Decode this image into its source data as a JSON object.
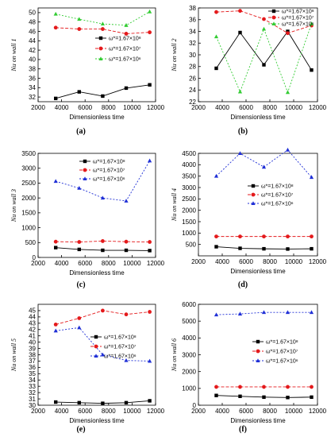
{
  "chart_data": [
    {
      "type": "line",
      "panel": "(a)",
      "title": "",
      "xlabel": "Dimensionless time",
      "ylabel": "Nu on wall 1",
      "x": [
        3500,
        5500,
        7500,
        9500,
        11500
      ],
      "xlim": [
        2000,
        12000
      ],
      "xticks": [
        2000,
        4000,
        6000,
        8000,
        10000,
        12000
      ],
      "ylim": [
        31,
        51
      ],
      "yticks": [
        32,
        34,
        36,
        38,
        40,
        42,
        44,
        46,
        48,
        50
      ],
      "legend_position": "right",
      "series": [
        {
          "name": "ω*=1.67×10^8",
          "values": [
            31.7,
            33.1,
            32.2,
            33.9,
            34.6
          ]
        },
        {
          "name": "ω*=1.67×10^7",
          "values": [
            46.8,
            46.5,
            46.5,
            45.5,
            45.8
          ]
        },
        {
          "name": "ω*=1.67×10^6",
          "values": [
            49.7,
            48.6,
            47.6,
            47.3,
            50.2
          ]
        }
      ]
    },
    {
      "type": "line",
      "panel": "(b)",
      "title": "",
      "xlabel": "Dimensionless time",
      "ylabel": "Nu on wall 2",
      "x": [
        3500,
        5500,
        7500,
        9500,
        11500
      ],
      "xlim": [
        2000,
        12000
      ],
      "xticks": [
        2000,
        4000,
        6000,
        8000,
        10000,
        12000
      ],
      "ylim": [
        22,
        38
      ],
      "yticks": [
        22,
        24,
        26,
        28,
        30,
        32,
        34,
        36,
        38
      ],
      "legend_position": "top-right",
      "series": [
        {
          "name": "ω*=1.67×10^8",
          "values": [
            27.7,
            33.8,
            28.3,
            34.0,
            27.4
          ]
        },
        {
          "name": "ω*=1.67×10^7",
          "values": [
            37.3,
            37.5,
            36.1,
            33.7,
            35.0
          ]
        },
        {
          "name": "ω*=1.67×10^6",
          "values": [
            33.1,
            23.7,
            34.4,
            23.6,
            35.3
          ]
        }
      ]
    },
    {
      "type": "line",
      "panel": "(c)",
      "title": "",
      "xlabel": "Dimensionless time",
      "ylabel": "Nu on wall 3",
      "x": [
        3500,
        5500,
        7500,
        9500,
        11500
      ],
      "xlim": [
        2000,
        12000
      ],
      "xticks": [
        2000,
        4000,
        6000,
        8000,
        10000,
        12000
      ],
      "ylim": [
        0,
        3500
      ],
      "yticks": [
        0,
        500,
        1000,
        1500,
        2000,
        2500,
        3000,
        3500
      ],
      "legend_position": "top-right",
      "series": [
        {
          "name": "ω*=1.67×10^8",
          "values": [
            330,
            270,
            240,
            240,
            230
          ]
        },
        {
          "name": "ω*=1.67×10^7",
          "values": [
            530,
            520,
            550,
            530,
            520
          ]
        },
        {
          "name": "ω*=1.67×10^6",
          "values": [
            2560,
            2330,
            2000,
            1900,
            3250
          ]
        }
      ]
    },
    {
      "type": "line",
      "panel": "(d)",
      "title": "",
      "xlabel": "Dimensionless time",
      "ylabel": "Nu on wall 4",
      "x": [
        3500,
        5500,
        7500,
        9500,
        11500
      ],
      "xlim": [
        2000,
        12000
      ],
      "xticks": [
        2000,
        4000,
        6000,
        8000,
        10000,
        12000
      ],
      "ylim": [
        0,
        4500
      ],
      "yticks": [
        500,
        1000,
        1500,
        2000,
        2500,
        3000,
        3500,
        4000,
        4500
      ],
      "legend_position": "right",
      "series": [
        {
          "name": "ω*=1.67×10^8",
          "values": [
            400,
            330,
            310,
            300,
            310
          ]
        },
        {
          "name": "ω*=1.67×10^7",
          "values": [
            850,
            850,
            850,
            850,
            850
          ]
        },
        {
          "name": "ω*=1.67×10^6",
          "values": [
            3500,
            4500,
            3900,
            4650,
            3450
          ]
        }
      ]
    },
    {
      "type": "line",
      "panel": "(e)",
      "title": "",
      "xlabel": "Dimensionless time",
      "ylabel": "Nu on wall 5",
      "x": [
        3500,
        5500,
        7500,
        9500,
        11500
      ],
      "xlim": [
        2000,
        12000
      ],
      "xticks": [
        2000,
        4000,
        6000,
        8000,
        10000,
        12000
      ],
      "ylim": [
        30,
        46
      ],
      "yticks": [
        30,
        31,
        32,
        33,
        34,
        35,
        36,
        37,
        38,
        39,
        40,
        41,
        42,
        43,
        44,
        45
      ],
      "legend_position": "right",
      "series": [
        {
          "name": "ω*=1.67×10^8",
          "values": [
            30.5,
            30.4,
            30.3,
            30.4,
            30.7
          ]
        },
        {
          "name": "ω*=1.67×10^7",
          "values": [
            42.8,
            43.8,
            45.0,
            44.4,
            44.8
          ]
        },
        {
          "name": "ω*=1.67×10^6",
          "values": [
            41.8,
            42.3,
            38.0,
            37.1,
            37.0
          ]
        }
      ]
    },
    {
      "type": "line",
      "panel": "(f)",
      "title": "",
      "xlabel": "Dimensionless time",
      "ylabel": "Nu on wall 6",
      "x": [
        3500,
        5500,
        7500,
        9500,
        11500
      ],
      "xlim": [
        2000,
        12000
      ],
      "xticks": [
        2000,
        4000,
        6000,
        8000,
        10000,
        12000
      ],
      "ylim": [
        0,
        6000
      ],
      "yticks": [
        0,
        1000,
        2000,
        3000,
        4000,
        5000,
        6000
      ],
      "legend_position": "right",
      "series": [
        {
          "name": "ω*=1.67×10^8",
          "values": [
            580,
            530,
            480,
            460,
            480
          ]
        },
        {
          "name": "ω*=1.67×10^7",
          "values": [
            1090,
            1090,
            1090,
            1090,
            1090
          ]
        },
        {
          "name": "ω*=1.67×10^6",
          "values": [
            5380,
            5430,
            5520,
            5520,
            5520
          ]
        }
      ]
    }
  ],
  "colors": {
    "series_1e8": "#000000",
    "series_1e7": "#e41a1c",
    "series_1e6": "#1f2fd6",
    "series_1e6_panel_b": "#33cc33",
    "series_1e6_panel_a": "#33cc33"
  },
  "captions": [
    "(a)",
    "(b)",
    "(c)",
    "(d)",
    "(e)",
    "(f)"
  ],
  "legend_labels": {
    "s8": "ω*=1.67×10⁸",
    "s7": "ω*=1.67×10⁷",
    "s6": "ω*=1.67×10⁶"
  }
}
